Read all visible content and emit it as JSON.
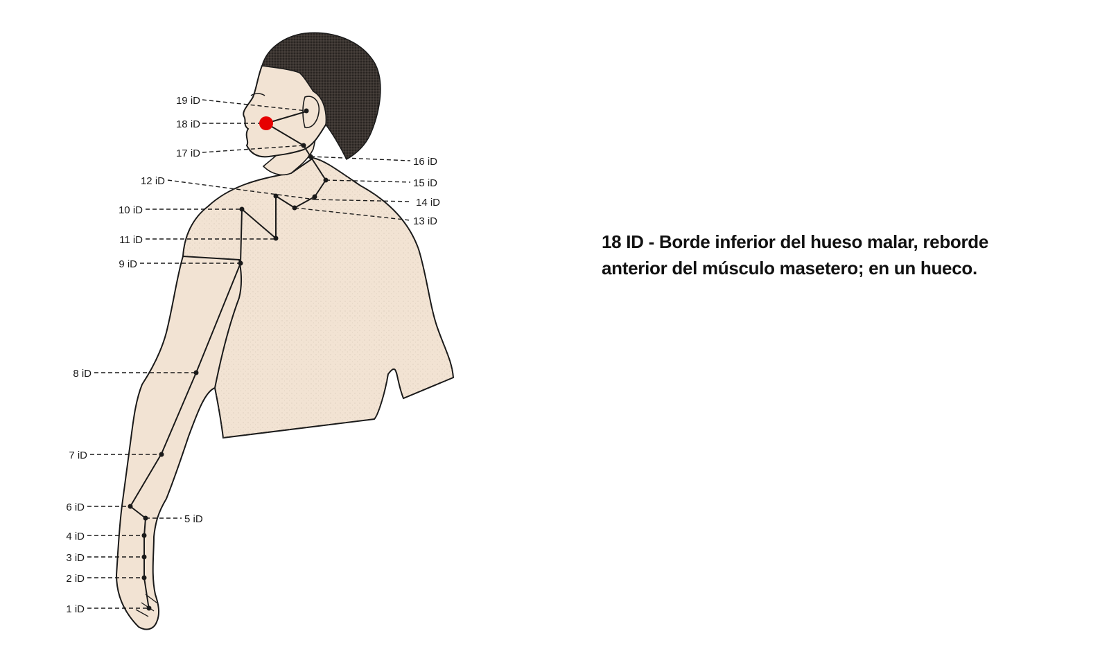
{
  "diagram": {
    "colors": {
      "skin": "#f2e3d3",
      "outline": "#1a1a1a",
      "hair": "#2b2623",
      "highlight": "#e60000"
    },
    "highlighted_point": "18 iD",
    "points": [
      {
        "id": "p19",
        "label": "19 iD"
      },
      {
        "id": "p18",
        "label": "18 iD"
      },
      {
        "id": "p17",
        "label": "17 iD"
      },
      {
        "id": "p16",
        "label": "16 iD"
      },
      {
        "id": "p15",
        "label": "15 iD"
      },
      {
        "id": "p14",
        "label": "14 iD"
      },
      {
        "id": "p13",
        "label": "13 iD"
      },
      {
        "id": "p12",
        "label": "12 iD"
      },
      {
        "id": "p10",
        "label": "10 iD"
      },
      {
        "id": "p11",
        "label": "11 iD"
      },
      {
        "id": "p9",
        "label": "9 iD"
      },
      {
        "id": "p8",
        "label": "8 iD"
      },
      {
        "id": "p7",
        "label": "7 iD"
      },
      {
        "id": "p6",
        "label": "6 iD"
      },
      {
        "id": "p5",
        "label": "5 iD"
      },
      {
        "id": "p4",
        "label": "4 iD"
      },
      {
        "id": "p3",
        "label": "3 iD"
      },
      {
        "id": "p2",
        "label": "2 iD"
      },
      {
        "id": "p1",
        "label": "1 iD"
      }
    ]
  },
  "description": {
    "line1": "18 ID - Borde inferior del hueso malar, reborde",
    "line2": "anterior del músculo masetero; en un hueco."
  }
}
